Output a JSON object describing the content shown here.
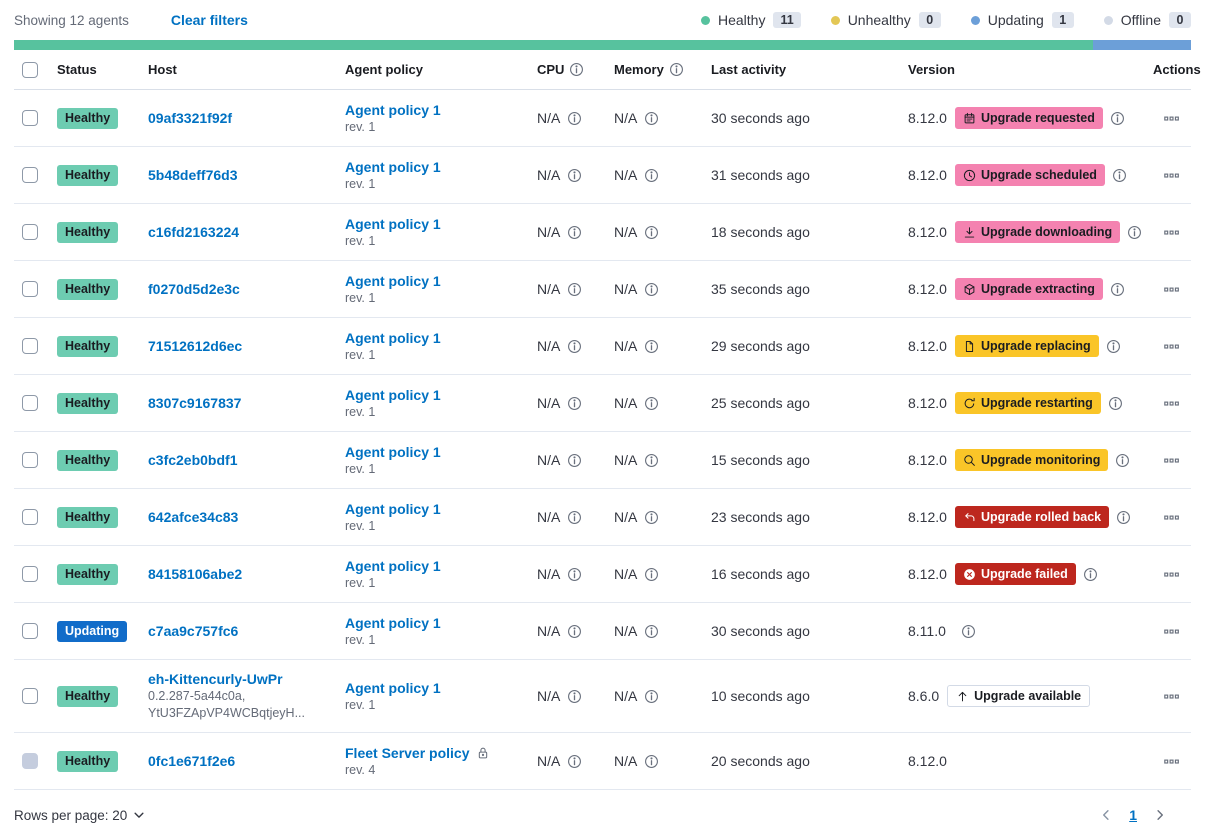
{
  "toolbar": {
    "showing": "Showing 12 agents",
    "clear_filters": "Clear filters"
  },
  "legend": {
    "items": [
      {
        "label": "Healthy",
        "count": "11",
        "color": "#57C29E"
      },
      {
        "label": "Unhealthy",
        "count": "0",
        "color": "#E3C755"
      },
      {
        "label": "Updating",
        "count": "1",
        "color": "#6C9FD8"
      },
      {
        "label": "Offline",
        "count": "0",
        "color": "#D3DAE6"
      }
    ]
  },
  "health_bar": {
    "segments": [
      {
        "status": "healthy",
        "color": "#57C29E",
        "fraction": 0.9167
      },
      {
        "status": "updating",
        "color": "#6C9FD8",
        "fraction": 0.0833
      }
    ]
  },
  "table": {
    "headers": {
      "status": "Status",
      "host": "Host",
      "policy": "Agent policy",
      "cpu": "CPU",
      "memory": "Memory",
      "activity": "Last activity",
      "version": "Version",
      "actions": "Actions"
    },
    "status_colors": {
      "healthy": "#6DCCB1",
      "updating": "#116CC9"
    },
    "upgrade_colors": {
      "accent": "#F482B0",
      "warning": "#FAC528",
      "danger": "#BD271E",
      "hollow": "#FFFFFF"
    },
    "rows": [
      {
        "status": {
          "label": "Healthy",
          "type": "healthy"
        },
        "host": {
          "name": "09af3321f92f"
        },
        "policy": {
          "name": "Agent policy 1",
          "rev": "rev. 1"
        },
        "cpu": "N/A",
        "memory": "N/A",
        "last_activity": "30 seconds ago",
        "version": "8.12.0",
        "upgrade": {
          "label": "Upgrade requested",
          "type": "accent",
          "icon": "calendar-icon"
        },
        "version_info": true
      },
      {
        "status": {
          "label": "Healthy",
          "type": "healthy"
        },
        "host": {
          "name": "5b48deff76d3"
        },
        "policy": {
          "name": "Agent policy 1",
          "rev": "rev. 1"
        },
        "cpu": "N/A",
        "memory": "N/A",
        "last_activity": "31 seconds ago",
        "version": "8.12.0",
        "upgrade": {
          "label": "Upgrade scheduled",
          "type": "accent",
          "icon": "clock-icon"
        },
        "version_info": true
      },
      {
        "status": {
          "label": "Healthy",
          "type": "healthy"
        },
        "host": {
          "name": "c16fd2163224"
        },
        "policy": {
          "name": "Agent policy 1",
          "rev": "rev. 1"
        },
        "cpu": "N/A",
        "memory": "N/A",
        "last_activity": "18 seconds ago",
        "version": "8.12.0",
        "upgrade": {
          "label": "Upgrade downloading",
          "type": "accent",
          "icon": "download-icon"
        },
        "version_info": true
      },
      {
        "status": {
          "label": "Healthy",
          "type": "healthy"
        },
        "host": {
          "name": "f0270d5d2e3c"
        },
        "policy": {
          "name": "Agent policy 1",
          "rev": "rev. 1"
        },
        "cpu": "N/A",
        "memory": "N/A",
        "last_activity": "35 seconds ago",
        "version": "8.12.0",
        "upgrade": {
          "label": "Upgrade extracting",
          "type": "accent",
          "icon": "package-icon"
        },
        "version_info": true
      },
      {
        "status": {
          "label": "Healthy",
          "type": "healthy"
        },
        "host": {
          "name": "71512612d6ec"
        },
        "policy": {
          "name": "Agent policy 1",
          "rev": "rev. 1"
        },
        "cpu": "N/A",
        "memory": "N/A",
        "last_activity": "29 seconds ago",
        "version": "8.12.0",
        "upgrade": {
          "label": "Upgrade replacing",
          "type": "warning",
          "icon": "document-icon"
        },
        "version_info": true
      },
      {
        "status": {
          "label": "Healthy",
          "type": "healthy"
        },
        "host": {
          "name": "8307c9167837"
        },
        "policy": {
          "name": "Agent policy 1",
          "rev": "rev. 1"
        },
        "cpu": "N/A",
        "memory": "N/A",
        "last_activity": "25 seconds ago",
        "version": "8.12.0",
        "upgrade": {
          "label": "Upgrade restarting",
          "type": "warning",
          "icon": "refresh-icon"
        },
        "version_info": true
      },
      {
        "status": {
          "label": "Healthy",
          "type": "healthy"
        },
        "host": {
          "name": "c3fc2eb0bdf1"
        },
        "policy": {
          "name": "Agent policy 1",
          "rev": "rev. 1"
        },
        "cpu": "N/A",
        "memory": "N/A",
        "last_activity": "15 seconds ago",
        "version": "8.12.0",
        "upgrade": {
          "label": "Upgrade monitoring",
          "type": "warning",
          "icon": "inspect-icon"
        },
        "version_info": true
      },
      {
        "status": {
          "label": "Healthy",
          "type": "healthy"
        },
        "host": {
          "name": "642afce34c83"
        },
        "policy": {
          "name": "Agent policy 1",
          "rev": "rev. 1"
        },
        "cpu": "N/A",
        "memory": "N/A",
        "last_activity": "23 seconds ago",
        "version": "8.12.0",
        "upgrade": {
          "label": "Upgrade rolled back",
          "type": "danger",
          "icon": "return-icon"
        },
        "version_info": true
      },
      {
        "status": {
          "label": "Healthy",
          "type": "healthy"
        },
        "host": {
          "name": "84158106abe2"
        },
        "policy": {
          "name": "Agent policy 1",
          "rev": "rev. 1"
        },
        "cpu": "N/A",
        "memory": "N/A",
        "last_activity": "16 seconds ago",
        "version": "8.12.0",
        "upgrade": {
          "label": "Upgrade failed",
          "type": "danger",
          "icon": "cross-in-circle-icon"
        },
        "version_info": true
      },
      {
        "status": {
          "label": "Updating",
          "type": "updating"
        },
        "host": {
          "name": "c7aa9c757fc6"
        },
        "policy": {
          "name": "Agent policy 1",
          "rev": "rev. 1"
        },
        "cpu": "N/A",
        "memory": "N/A",
        "last_activity": "30 seconds ago",
        "version": "8.11.0",
        "upgrade": null,
        "version_info": true
      },
      {
        "status": {
          "label": "Healthy",
          "type": "healthy"
        },
        "host": {
          "name": "eh-Kittencurly-UwPr",
          "sub": [
            "0.2.287-5a44c0a,",
            "YtU3FZApVP4WCBqtjeyH..."
          ]
        },
        "policy": {
          "name": "Agent policy 1",
          "rev": "rev. 1"
        },
        "cpu": "N/A",
        "memory": "N/A",
        "last_activity": "10 seconds ago",
        "version": "8.6.0",
        "upgrade": {
          "label": "Upgrade available",
          "type": "hollow",
          "icon": "arrow-up-icon"
        },
        "version_info": false
      },
      {
        "status": {
          "label": "Healthy",
          "type": "healthy"
        },
        "host": {
          "name": "0fc1e671f2e6"
        },
        "policy": {
          "name": "Fleet Server policy",
          "rev": "rev. 4",
          "locked": true
        },
        "cpu": "N/A",
        "memory": "N/A",
        "last_activity": "20 seconds ago",
        "version": "8.12.0",
        "upgrade": null,
        "version_info": false,
        "checkbox_disabled": true
      }
    ]
  },
  "footer": {
    "rows_per_page": "Rows per page: 20",
    "page": "1"
  }
}
